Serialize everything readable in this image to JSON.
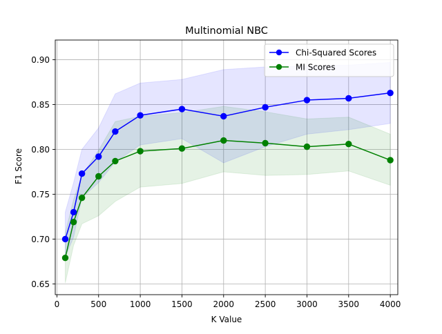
{
  "chart_data": {
    "type": "line",
    "title": "Multinomial NBC",
    "xlabel": "K Value",
    "ylabel": "F1 Score",
    "xlim": [
      -20,
      4090
    ],
    "ylim": [
      0.638,
      0.922
    ],
    "xticks": [
      0,
      500,
      1000,
      1500,
      2000,
      2500,
      3000,
      3500,
      4000
    ],
    "yticks": [
      0.65,
      0.7,
      0.75,
      0.8,
      0.85,
      0.9
    ],
    "xtick_labels": [
      "0",
      "500",
      "1000",
      "1500",
      "2000",
      "2500",
      "3000",
      "3500",
      "4000"
    ],
    "ytick_labels": [
      "0.65",
      "0.70",
      "0.75",
      "0.80",
      "0.85",
      "0.90"
    ],
    "grid": true,
    "legend_position": "top-right",
    "x": [
      100,
      200,
      300,
      500,
      700,
      1000,
      1500,
      2000,
      2500,
      3000,
      3500,
      4000
    ],
    "series": [
      {
        "name": "Chi-Squared Scores",
        "color": "#0000ff",
        "marker": "circle",
        "values": [
          0.7,
          0.73,
          0.773,
          0.792,
          0.82,
          0.838,
          0.845,
          0.837,
          0.847,
          0.855,
          0.857,
          0.863
        ],
        "band_upper": [
          0.73,
          0.763,
          0.8,
          0.824,
          0.862,
          0.874,
          0.878,
          0.889,
          0.892,
          0.893,
          0.894,
          0.897
        ],
        "band_lower": [
          0.68,
          0.702,
          0.746,
          0.763,
          0.786,
          0.805,
          0.812,
          0.785,
          0.803,
          0.817,
          0.822,
          0.829
        ]
      },
      {
        "name": "MI Scores",
        "color": "#008000",
        "marker": "circle",
        "values": [
          0.679,
          0.719,
          0.746,
          0.77,
          0.787,
          0.798,
          0.801,
          0.81,
          0.807,
          0.803,
          0.806,
          0.788
        ],
        "band_upper": [
          0.707,
          0.744,
          0.771,
          0.799,
          0.831,
          0.837,
          0.841,
          0.848,
          0.842,
          0.834,
          0.836,
          0.817
        ],
        "band_lower": [
          0.651,
          0.693,
          0.717,
          0.726,
          0.742,
          0.758,
          0.762,
          0.775,
          0.771,
          0.772,
          0.776,
          0.76
        ]
      }
    ]
  }
}
